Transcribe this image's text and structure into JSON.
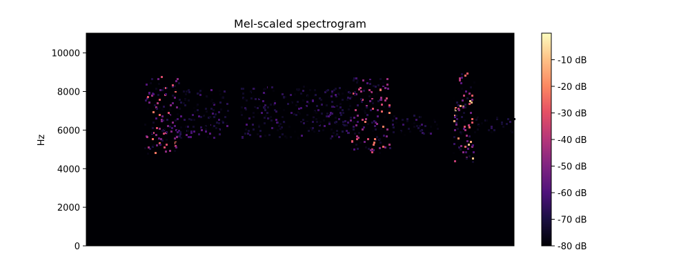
{
  "chart_data": {
    "type": "heatmap",
    "title": "Mel-scaled spectrogram",
    "xlabel": "",
    "ylabel": "Hz",
    "ylim": [
      0,
      11025
    ],
    "yticks": [
      {
        "value": 0,
        "label": "0"
      },
      {
        "value": 2000,
        "label": "2000"
      },
      {
        "value": 4000,
        "label": "4000"
      },
      {
        "value": 6000,
        "label": "6000"
      },
      {
        "value": 8000,
        "label": "8000"
      },
      {
        "value": 10000,
        "label": "10000"
      }
    ],
    "colorbar": {
      "colormap": "magma",
      "range_db": [
        -80,
        0
      ],
      "ticks": [
        {
          "value": -10,
          "label": "-10 dB"
        },
        {
          "value": -20,
          "label": "-20 dB"
        },
        {
          "value": -30,
          "label": "-30 dB"
        },
        {
          "value": -40,
          "label": "-40 dB"
        },
        {
          "value": -50,
          "label": "-50 dB"
        },
        {
          "value": -60,
          "label": "-60 dB"
        },
        {
          "value": -70,
          "label": "-70 dB"
        },
        {
          "value": -80,
          "label": "-80 dB"
        }
      ]
    },
    "background_db": -80,
    "time_extent": [
      0,
      1
    ],
    "events": [
      {
        "t0": 0.135,
        "t1": 0.215,
        "f0": 4800,
        "f1": 8800,
        "peak_db": -22
      },
      {
        "t0": 0.215,
        "t1": 0.33,
        "f0": 5600,
        "f1": 8200,
        "peak_db": -55
      },
      {
        "t0": 0.36,
        "t1": 0.62,
        "f0": 5600,
        "f1": 8300,
        "peak_db": -60
      },
      {
        "t0": 0.615,
        "t1": 0.71,
        "f0": 4800,
        "f1": 8800,
        "peak_db": -20
      },
      {
        "t0": 0.71,
        "t1": 0.82,
        "f0": 5800,
        "f1": 6800,
        "peak_db": -62
      },
      {
        "t0": 0.855,
        "t1": 0.905,
        "f0": 4400,
        "f1": 9000,
        "peak_db": -5
      },
      {
        "t0": 0.905,
        "t1": 1.0,
        "f0": 5900,
        "f1": 6700,
        "peak_db": -65
      }
    ]
  }
}
